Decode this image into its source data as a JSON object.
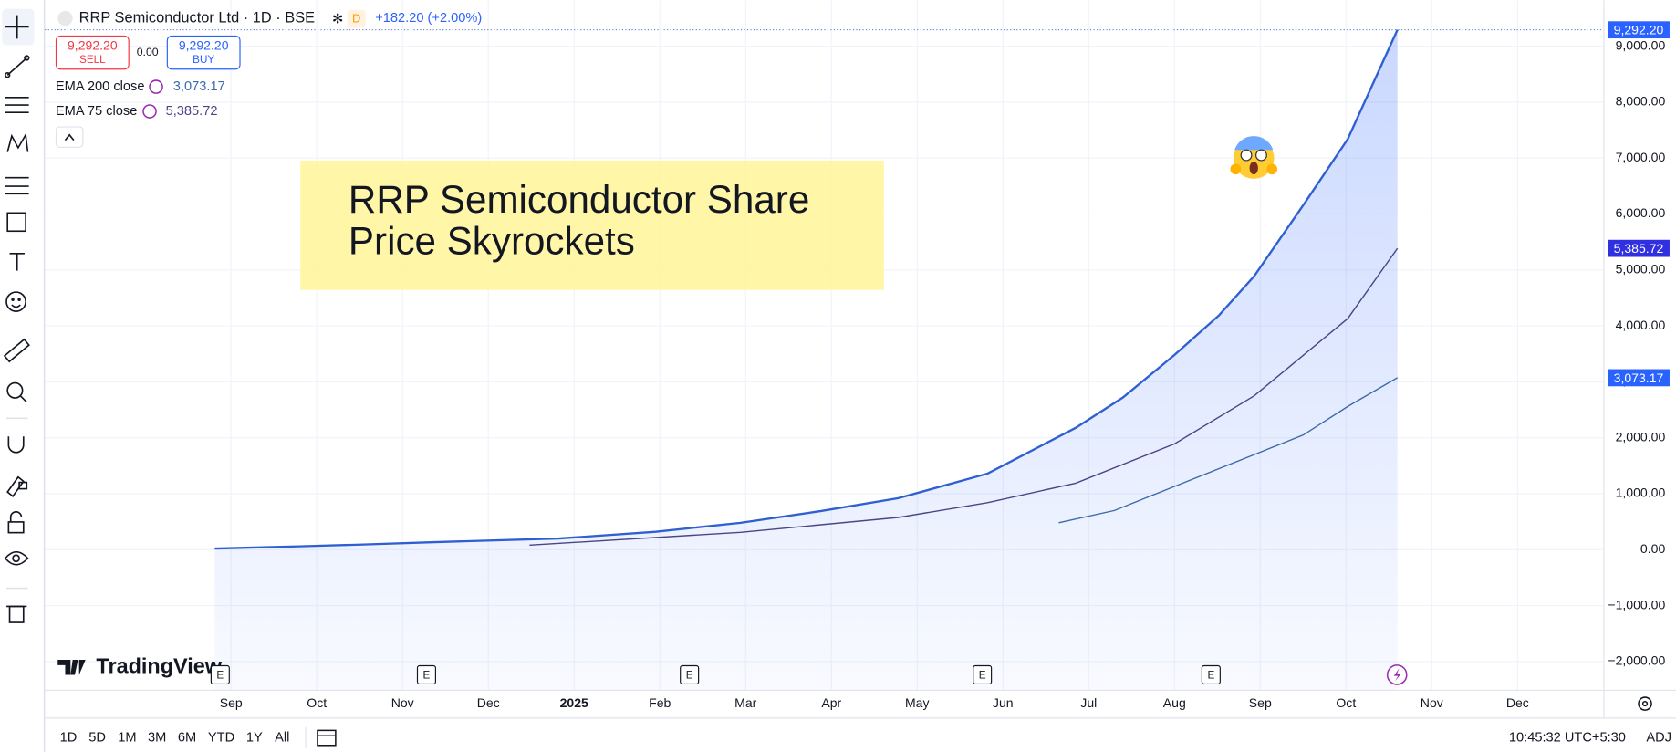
{
  "header": {
    "badge": "D",
    "change": "+182.20 (+2.00%)"
  },
  "trade": {
    "sell": "SELL",
    "spread": "0.00",
    "buy": "BUY"
  },
  "annotation": {
    "lines": [
      "RRP Semiconductor Share",
      "Price Skyrockets"
    ]
  },
  "watermark": "TradingView",
  "event_marker": "E",
  "chart_data": {
    "type": "line",
    "grid": true,
    "xlim": [
      -2.17,
      16.0
    ],
    "xticks": [
      {
        "value": 0,
        "label": "Sep"
      },
      {
        "value": 1,
        "label": "Oct"
      },
      {
        "value": 2,
        "label": "Nov"
      },
      {
        "value": 3,
        "label": "Dec"
      },
      {
        "value": 4,
        "label": "2025"
      },
      {
        "value": 5,
        "label": "Feb"
      },
      {
        "value": 6,
        "label": "Mar"
      },
      {
        "value": 7,
        "label": "Apr"
      },
      {
        "value": 8,
        "label": "May"
      },
      {
        "value": 9,
        "label": "Jun"
      },
      {
        "value": 10,
        "label": "Jul"
      },
      {
        "value": 11,
        "label": "Aug"
      },
      {
        "value": 12,
        "label": "Sep"
      },
      {
        "value": 13,
        "label": "Oct"
      },
      {
        "value": 14,
        "label": "Nov"
      },
      {
        "value": 15,
        "label": "Dec"
      }
    ],
    "ylim": [
      -2505,
      9822
    ],
    "yticks": [
      {
        "value": -2000,
        "label": "−2,000.00"
      },
      {
        "value": -1000,
        "label": "−1,000.00"
      },
      {
        "value": 0,
        "label": "0.00"
      },
      {
        "value": 1000,
        "label": "1,000.00"
      },
      {
        "value": 2000,
        "label": "2,000.00"
      },
      {
        "value": 3000,
        "label": "3,000.00"
      },
      {
        "value": 4000,
        "label": "4,000.00"
      },
      {
        "value": 5000,
        "label": "5,000.00"
      },
      {
        "value": 6000,
        "label": "6,000.00"
      },
      {
        "value": 7000,
        "label": "7,000.00"
      },
      {
        "value": 8000,
        "label": "8,000.00"
      },
      {
        "value": 9000,
        "label": "9,000.00"
      }
    ],
    "series": [
      {
        "name": "RRP Semiconductor Ltd · 1D · BSE",
        "color": "#2f5fd0",
        "area": true,
        "x": [
          -0.19,
          0.8,
          1.5,
          2.29,
          3.82,
          4.95,
          5.94,
          6.88,
          7.78,
          8.82,
          9.85,
          10.4,
          11.0,
          11.52,
          11.93,
          12.52,
          13.02,
          13.6
        ],
        "values": [
          20,
          60,
          90,
          130,
          200,
          320,
          480,
          690,
          920,
          1360,
          2180,
          2720,
          3480,
          4190,
          4890,
          6200,
          7340,
          9292.2
        ],
        "value_labels": [
          null,
          null,
          null,
          null,
          null,
          null,
          null,
          null,
          null,
          null,
          null,
          null,
          null,
          null,
          null,
          null,
          null,
          "9,292.20"
        ]
      },
      {
        "name": "EMA 200 close",
        "color": "#3d6aa8",
        "x": [
          9.65,
          10.3,
          11.0,
          11.93,
          12.5,
          13.02,
          13.6
        ],
        "values": [
          480,
          700,
          1130,
          1700,
          2050,
          2560,
          3073.17
        ],
        "value_labels": [
          null,
          null,
          null,
          null,
          null,
          null,
          "3,073.17"
        ]
      },
      {
        "name": "EMA 75 close",
        "color": "#4a4585",
        "x": [
          3.48,
          5.94,
          7.78,
          8.82,
          9.85,
          11.0,
          11.93,
          13.02,
          13.6
        ],
        "values": [
          80,
          310,
          575,
          840,
          1190,
          1890,
          2750,
          4130,
          5385.72
        ],
        "value_labels": [
          null,
          null,
          null,
          null,
          null,
          null,
          null,
          null,
          "5,385.72"
        ]
      }
    ]
  },
  "timeframes": [
    "1D",
    "5D",
    "1M",
    "3M",
    "6M",
    "YTD",
    "1Y",
    "All"
  ],
  "clock": "10:45:32 UTC+5:30",
  "adj": "ADJ"
}
